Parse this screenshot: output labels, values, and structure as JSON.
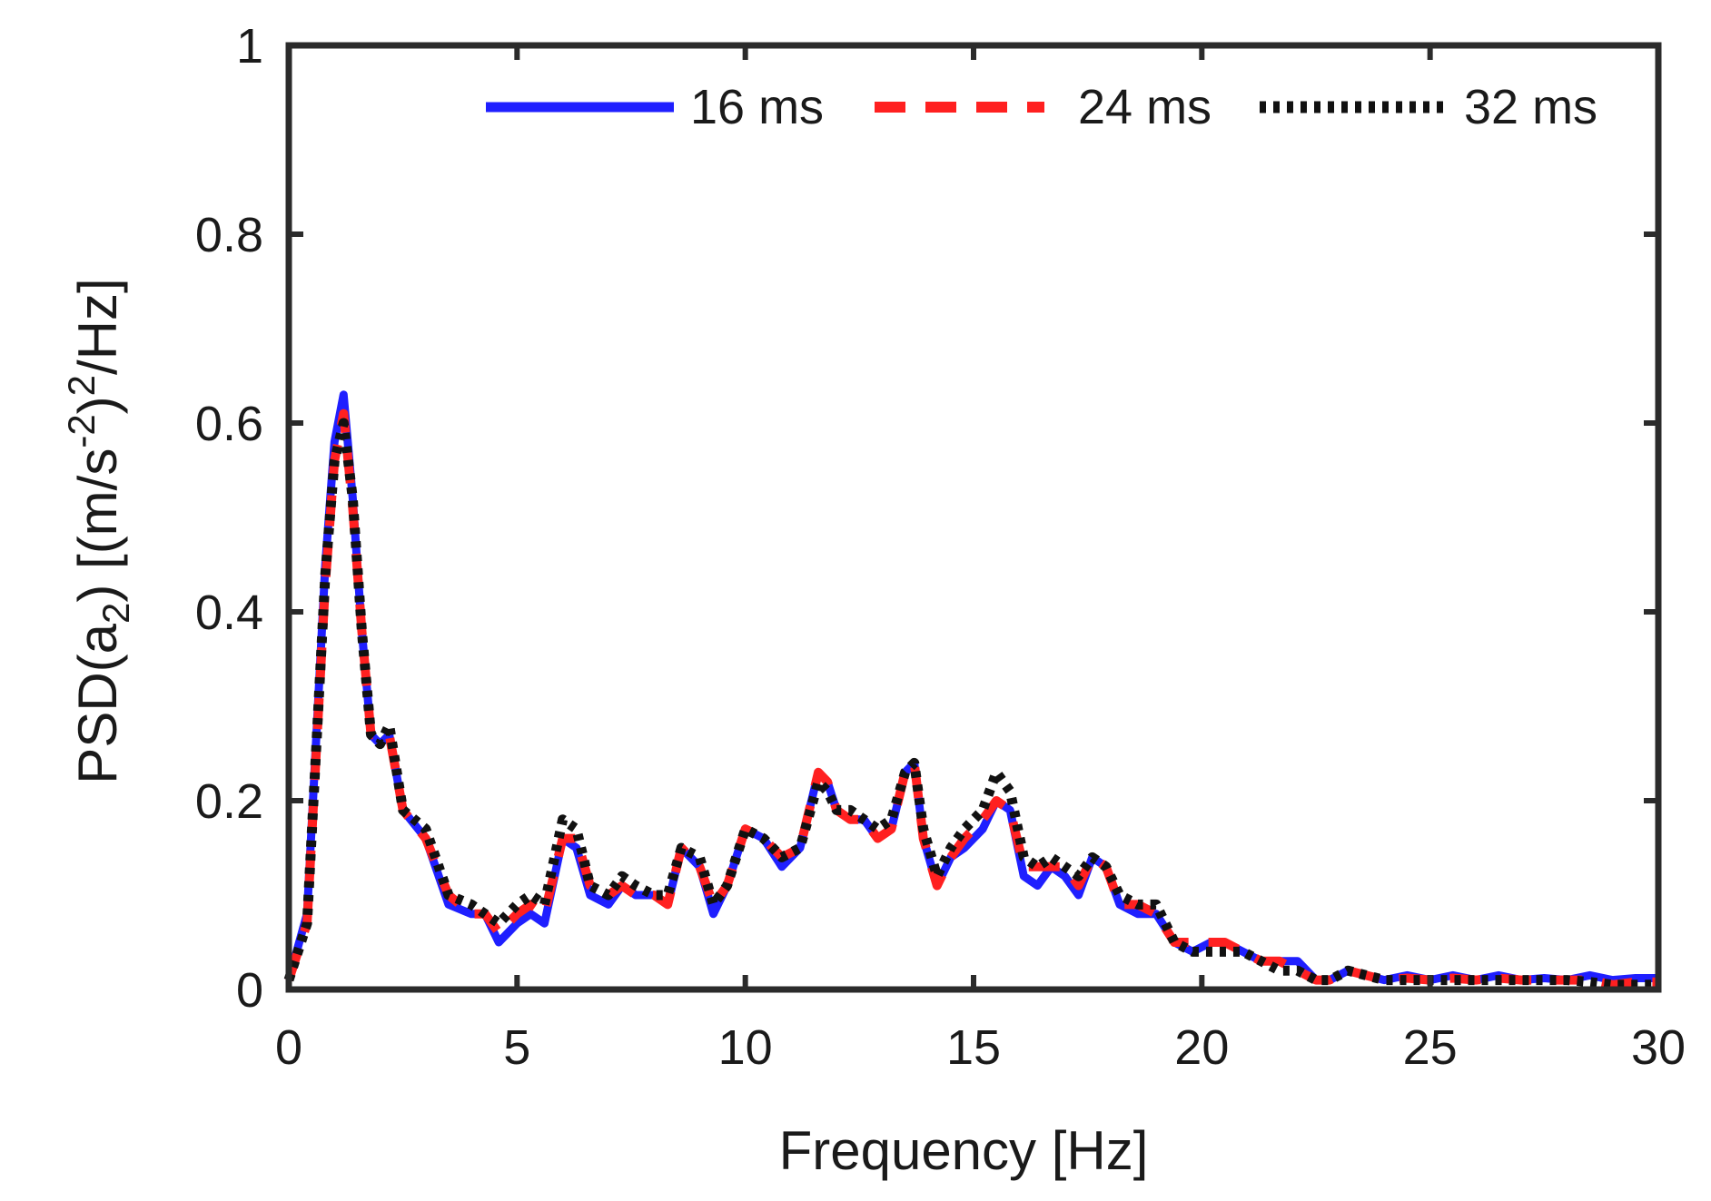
{
  "chart_data": {
    "type": "line",
    "xlabel": "Frequency [Hz]",
    "ylabel": {
      "prefix": "PSD(a",
      "subscript": "2",
      "mid": ") [(m/s",
      "superscript1": "-2",
      "mid2": ")",
      "superscript2": "2",
      "suffix": "/Hz]"
    },
    "xlim": [
      0,
      30
    ],
    "ylim": [
      0,
      1
    ],
    "xticks": [
      0,
      5,
      10,
      15,
      20,
      25,
      30
    ],
    "yticks": [
      0,
      0.2,
      0.4,
      0.6,
      0.8,
      1
    ],
    "ytick_labels": [
      "0",
      "0.2",
      "0.4",
      "0.6",
      "0.8",
      "1"
    ],
    "legend_position": "top-right",
    "series": [
      {
        "name": "16 ms",
        "color": "#1f1fff",
        "style": "solid",
        "x": [
          0,
          0.4,
          0.8,
          1.0,
          1.2,
          1.4,
          1.6,
          1.8,
          2.0,
          2.2,
          2.5,
          3.0,
          3.5,
          4.0,
          4.3,
          4.6,
          5.0,
          5.3,
          5.6,
          6.0,
          6.3,
          6.6,
          7.0,
          7.3,
          7.6,
          8.0,
          8.3,
          8.6,
          9.0,
          9.3,
          9.6,
          10.0,
          10.4,
          10.8,
          11.2,
          11.6,
          11.8,
          12.0,
          12.3,
          12.6,
          12.9,
          13.2,
          13.5,
          13.7,
          13.9,
          14.2,
          14.5,
          14.8,
          15.2,
          15.5,
          15.8,
          16.1,
          16.4,
          16.7,
          17.0,
          17.3,
          17.6,
          17.9,
          18.2,
          18.6,
          19.0,
          19.4,
          19.8,
          20.2,
          20.5,
          20.9,
          21.3,
          21.7,
          22.1,
          22.5,
          22.8,
          23.2,
          23.6,
          24.0,
          24.5,
          25.0,
          25.5,
          26.0,
          26.5,
          27.0,
          27.5,
          28.0,
          28.5,
          29.0,
          29.5,
          30.0
        ],
        "values": [
          0.01,
          0.08,
          0.45,
          0.58,
          0.63,
          0.52,
          0.38,
          0.27,
          0.26,
          0.27,
          0.19,
          0.16,
          0.09,
          0.08,
          0.08,
          0.05,
          0.07,
          0.08,
          0.07,
          0.16,
          0.15,
          0.1,
          0.09,
          0.11,
          0.1,
          0.1,
          0.09,
          0.15,
          0.13,
          0.08,
          0.11,
          0.17,
          0.16,
          0.13,
          0.15,
          0.23,
          0.22,
          0.19,
          0.18,
          0.18,
          0.16,
          0.17,
          0.23,
          0.24,
          0.16,
          0.11,
          0.14,
          0.15,
          0.17,
          0.2,
          0.19,
          0.12,
          0.11,
          0.13,
          0.12,
          0.1,
          0.14,
          0.13,
          0.09,
          0.08,
          0.08,
          0.05,
          0.04,
          0.05,
          0.05,
          0.04,
          0.03,
          0.03,
          0.03,
          0.01,
          0.01,
          0.02,
          0.015,
          0.01,
          0.015,
          0.01,
          0.015,
          0.01,
          0.015,
          0.01,
          0.012,
          0.01,
          0.015,
          0.01,
          0.012,
          0.012
        ]
      },
      {
        "name": "24 ms",
        "color": "#ff2020",
        "style": "dashed",
        "x": [
          0,
          0.4,
          0.8,
          1.0,
          1.2,
          1.4,
          1.6,
          1.8,
          2.0,
          2.2,
          2.5,
          3.0,
          3.5,
          4.0,
          4.3,
          4.6,
          5.0,
          5.3,
          5.6,
          6.0,
          6.3,
          6.6,
          7.0,
          7.3,
          7.6,
          8.0,
          8.3,
          8.6,
          9.0,
          9.3,
          9.6,
          10.0,
          10.4,
          10.8,
          11.2,
          11.6,
          11.8,
          12.0,
          12.3,
          12.6,
          12.9,
          13.2,
          13.5,
          13.7,
          13.9,
          14.2,
          14.5,
          14.8,
          15.2,
          15.5,
          15.8,
          16.1,
          16.4,
          16.7,
          17.0,
          17.3,
          17.6,
          17.9,
          18.2,
          18.6,
          19.0,
          19.4,
          19.8,
          20.2,
          20.5,
          20.9,
          21.3,
          21.7,
          22.1,
          22.5,
          22.8,
          23.2,
          23.6,
          24.0,
          24.5,
          25.0,
          25.5,
          26.0,
          26.5,
          27.0,
          27.5,
          28.0,
          28.5,
          29.0,
          29.5,
          30.0
        ],
        "values": [
          0.01,
          0.07,
          0.43,
          0.56,
          0.61,
          0.51,
          0.38,
          0.27,
          0.27,
          0.27,
          0.19,
          0.16,
          0.1,
          0.08,
          0.08,
          0.06,
          0.08,
          0.09,
          0.08,
          0.16,
          0.16,
          0.11,
          0.1,
          0.11,
          0.1,
          0.1,
          0.09,
          0.15,
          0.13,
          0.09,
          0.11,
          0.17,
          0.16,
          0.14,
          0.15,
          0.23,
          0.22,
          0.19,
          0.18,
          0.18,
          0.16,
          0.17,
          0.23,
          0.24,
          0.16,
          0.11,
          0.14,
          0.16,
          0.18,
          0.2,
          0.19,
          0.13,
          0.13,
          0.13,
          0.13,
          0.11,
          0.14,
          0.13,
          0.09,
          0.09,
          0.08,
          0.05,
          0.05,
          0.05,
          0.05,
          0.04,
          0.03,
          0.03,
          0.02,
          0.01,
          0.01,
          0.02,
          0.015,
          0.01,
          0.012,
          0.01,
          0.012,
          0.01,
          0.012,
          0.01,
          0.01,
          0.01,
          0.01,
          0.005,
          0.008,
          0.008
        ]
      },
      {
        "name": "32 ms",
        "color": "#111111",
        "style": "dotted",
        "x": [
          0,
          0.4,
          0.8,
          1.0,
          1.2,
          1.4,
          1.6,
          1.8,
          2.0,
          2.2,
          2.5,
          3.0,
          3.5,
          4.0,
          4.3,
          4.6,
          5.0,
          5.3,
          5.6,
          6.0,
          6.3,
          6.6,
          7.0,
          7.3,
          7.6,
          8.0,
          8.3,
          8.6,
          9.0,
          9.3,
          9.6,
          10.0,
          10.4,
          10.8,
          11.2,
          11.6,
          11.8,
          12.0,
          12.3,
          12.6,
          12.9,
          13.2,
          13.5,
          13.7,
          13.9,
          14.2,
          14.5,
          14.8,
          15.2,
          15.5,
          15.8,
          16.1,
          16.4,
          16.7,
          17.0,
          17.3,
          17.6,
          17.9,
          18.2,
          18.6,
          19.0,
          19.4,
          19.8,
          20.2,
          20.5,
          20.9,
          21.3,
          21.7,
          22.1,
          22.5,
          22.8,
          23.2,
          23.6,
          24.0,
          24.5,
          25.0,
          25.5,
          26.0,
          26.5,
          27.0,
          27.5,
          28.0,
          28.5,
          29.0,
          29.5,
          30.0
        ],
        "values": [
          0.01,
          0.07,
          0.44,
          0.56,
          0.6,
          0.52,
          0.38,
          0.27,
          0.26,
          0.28,
          0.19,
          0.17,
          0.1,
          0.09,
          0.08,
          0.07,
          0.09,
          0.1,
          0.09,
          0.18,
          0.17,
          0.11,
          0.1,
          0.12,
          0.11,
          0.1,
          0.1,
          0.15,
          0.14,
          0.09,
          0.11,
          0.17,
          0.16,
          0.14,
          0.15,
          0.22,
          0.21,
          0.19,
          0.19,
          0.18,
          0.17,
          0.18,
          0.23,
          0.24,
          0.17,
          0.12,
          0.15,
          0.17,
          0.19,
          0.23,
          0.21,
          0.14,
          0.13,
          0.14,
          0.13,
          0.12,
          0.14,
          0.13,
          0.1,
          0.09,
          0.09,
          0.05,
          0.04,
          0.04,
          0.04,
          0.04,
          0.03,
          0.02,
          0.02,
          0.01,
          0.01,
          0.02,
          0.015,
          0.01,
          0.01,
          0.01,
          0.01,
          0.01,
          0.01,
          0.01,
          0.01,
          0.01,
          0.008,
          0.005,
          0.005,
          0.005
        ]
      }
    ]
  }
}
